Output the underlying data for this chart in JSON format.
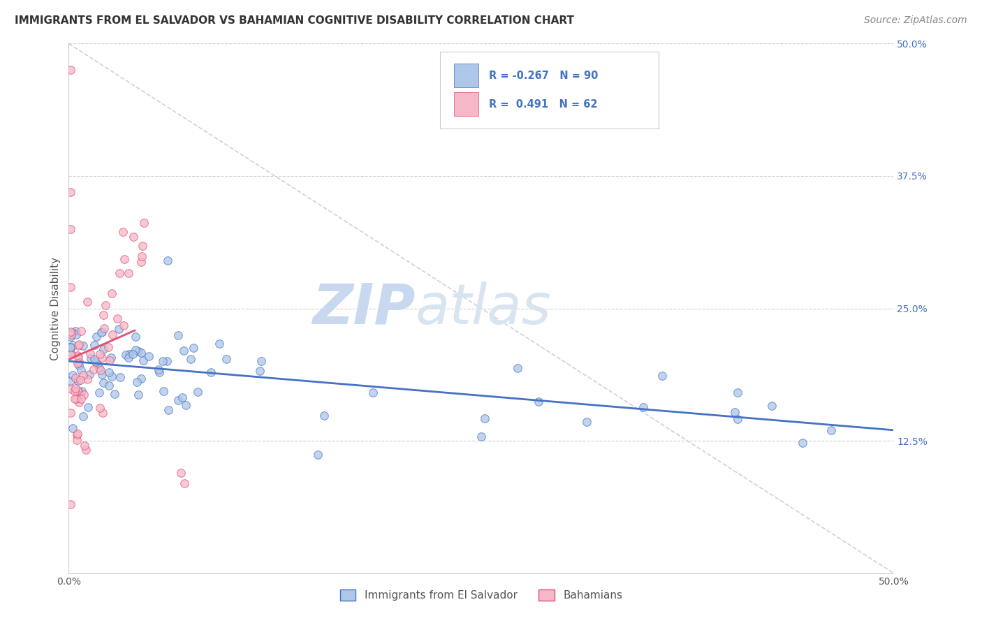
{
  "title": "IMMIGRANTS FROM EL SALVADOR VS BAHAMIAN COGNITIVE DISABILITY CORRELATION CHART",
  "source": "Source: ZipAtlas.com",
  "ylabel": "Cognitive Disability",
  "legend_blue_label": "Immigrants from El Salvador",
  "legend_pink_label": "Bahamians",
  "blue_color": "#aec6e8",
  "pink_color": "#f5b8c8",
  "blue_line_color": "#4472c4",
  "pink_line_color": "#e05070",
  "watermark_zip": "ZIP",
  "watermark_atlas": "atlas",
  "watermark_color": "#c8d8ee",
  "xlim": [
    0.0,
    0.5
  ],
  "ylim": [
    0.0,
    0.5
  ],
  "grid_color": "#d0d0d0",
  "background_color": "#ffffff",
  "right_yticks": [
    0.125,
    0.25,
    0.375,
    0.5
  ],
  "right_yticklabels": [
    "12.5%",
    "25.0%",
    "37.5%",
    "50.0%"
  ],
  "diag_color": "#cccccc",
  "title_fontsize": 11,
  "source_fontsize": 10,
  "tick_color": "#4472c4",
  "legend_R_color": "#4472c4",
  "legend_N_color": "#333333"
}
